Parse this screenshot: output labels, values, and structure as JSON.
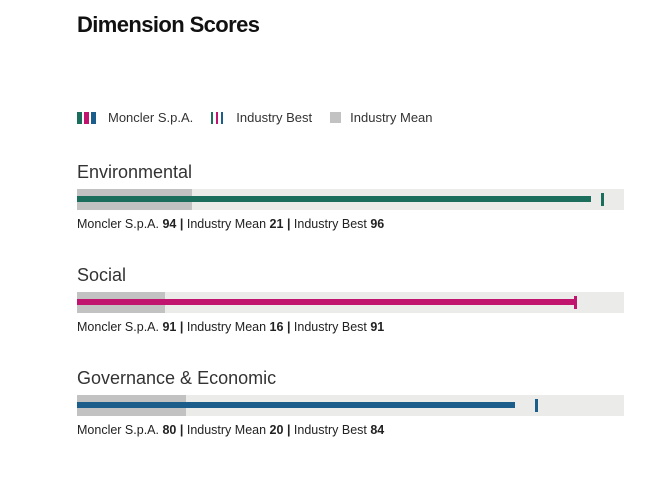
{
  "title": "Dimension Scores",
  "legend": {
    "company": "Moncler S.p.A.",
    "best": "Industry Best",
    "mean": "Industry Mean"
  },
  "colors": {
    "environmental": "#1c6e5c",
    "social": "#c0146f",
    "governance": "#1b5e8c",
    "mean": "#c2c2c2",
    "track": "#ebebea"
  },
  "chart_data": {
    "type": "bar",
    "xlim": [
      0,
      100
    ],
    "legend_position": "top-left",
    "categories": [
      "Environmental",
      "Social",
      "Governance & Economic"
    ],
    "series": [
      {
        "name": "Moncler S.p.A.",
        "values": [
          94,
          91,
          80
        ]
      },
      {
        "name": "Industry Mean",
        "values": [
          21,
          16,
          20
        ]
      },
      {
        "name": "Industry Best",
        "values": [
          96,
          91,
          84
        ]
      }
    ]
  },
  "dimensions": [
    {
      "name": "Environmental",
      "company_label": "Moncler S.p.A.",
      "score": "94",
      "mean_label": "Industry Mean",
      "mean": "21",
      "best_label": "Industry Best",
      "best": "96"
    },
    {
      "name": "Social",
      "company_label": "Moncler S.p.A.",
      "score": "91",
      "mean_label": "Industry Mean",
      "mean": "16",
      "best_label": "Industry Best",
      "best": "91"
    },
    {
      "name": "Governance & Economic",
      "company_label": "Moncler S.p.A.",
      "score": "80",
      "mean_label": "Industry Mean",
      "mean": "20",
      "best_label": "Industry Best",
      "best": "84"
    }
  ]
}
